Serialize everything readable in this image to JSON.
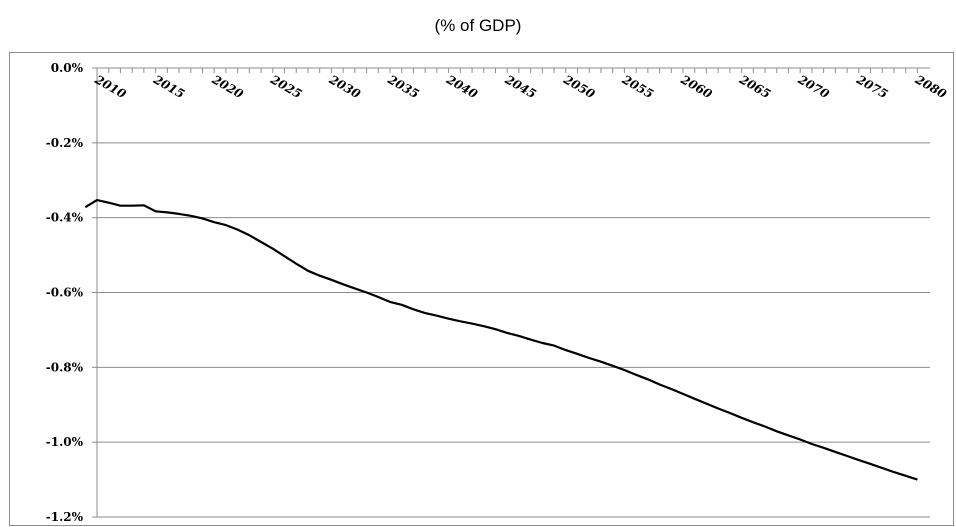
{
  "chart_data": {
    "type": "line",
    "title": "(% of GDP)",
    "xlabel": "",
    "ylabel": "",
    "xlim": [
      2008,
      2080
    ],
    "ylim": [
      -1.2,
      0.0
    ],
    "y_ticks": [
      0.0,
      -0.2,
      -0.4,
      -0.6,
      -0.8,
      -1.0,
      -1.2
    ],
    "y_tick_labels": [
      "0.0%",
      "-0.2%",
      "-0.4%",
      "-0.6%",
      "-0.8%",
      "-1.0%",
      "-1.2%"
    ],
    "x_tick_labels": [
      "2010",
      "2015",
      "2020",
      "2025",
      "2030",
      "2035",
      "2040",
      "2045",
      "2050",
      "2055",
      "2060",
      "2065",
      "2070",
      "2075",
      "2080"
    ],
    "x_axis_position": "top",
    "grid": "horizontal",
    "legend": "none",
    "line_color": "#000000",
    "grid_color": "#8c8c8c",
    "series": [
      {
        "x": [
          2009,
          2010,
          2011,
          2012,
          2013,
          2014,
          2015,
          2016,
          2017,
          2018,
          2019,
          2020,
          2021,
          2022,
          2023,
          2024,
          2025,
          2026,
          2027,
          2028,
          2029,
          2030,
          2031,
          2032,
          2033,
          2034,
          2035,
          2036,
          2037,
          2038,
          2039,
          2040,
          2041,
          2042,
          2043,
          2044,
          2045,
          2046,
          2047,
          2048,
          2049,
          2050,
          2051,
          2052,
          2053,
          2054,
          2055,
          2056,
          2057,
          2058,
          2059,
          2060,
          2061,
          2062,
          2063,
          2064,
          2065,
          2066,
          2067,
          2068,
          2069,
          2070,
          2071,
          2072,
          2073,
          2074,
          2075,
          2076,
          2077,
          2078,
          2079,
          2080
        ],
        "values": [
          -0.372,
          -0.353,
          -0.36,
          -0.368,
          -0.368,
          -0.367,
          -0.383,
          -0.386,
          -0.39,
          -0.395,
          -0.402,
          -0.412,
          -0.42,
          -0.432,
          -0.447,
          -0.465,
          -0.483,
          -0.503,
          -0.523,
          -0.542,
          -0.555,
          -0.566,
          -0.578,
          -0.589,
          -0.6,
          -0.612,
          -0.625,
          -0.633,
          -0.645,
          -0.655,
          -0.662,
          -0.67,
          -0.677,
          -0.683,
          -0.69,
          -0.698,
          -0.708,
          -0.716,
          -0.726,
          -0.735,
          -0.742,
          -0.754,
          -0.764,
          -0.775,
          -0.785,
          -0.796,
          -0.807,
          -0.82,
          -0.832,
          -0.846,
          -0.858,
          -0.871,
          -0.884,
          -0.897,
          -0.91,
          -0.922,
          -0.935,
          -0.947,
          -0.958,
          -0.971,
          -0.982,
          -0.993,
          -1.005,
          -1.015,
          -1.026,
          -1.037,
          -1.048,
          -1.058,
          -1.069,
          -1.08,
          -1.09,
          -1.1
        ]
      }
    ]
  }
}
